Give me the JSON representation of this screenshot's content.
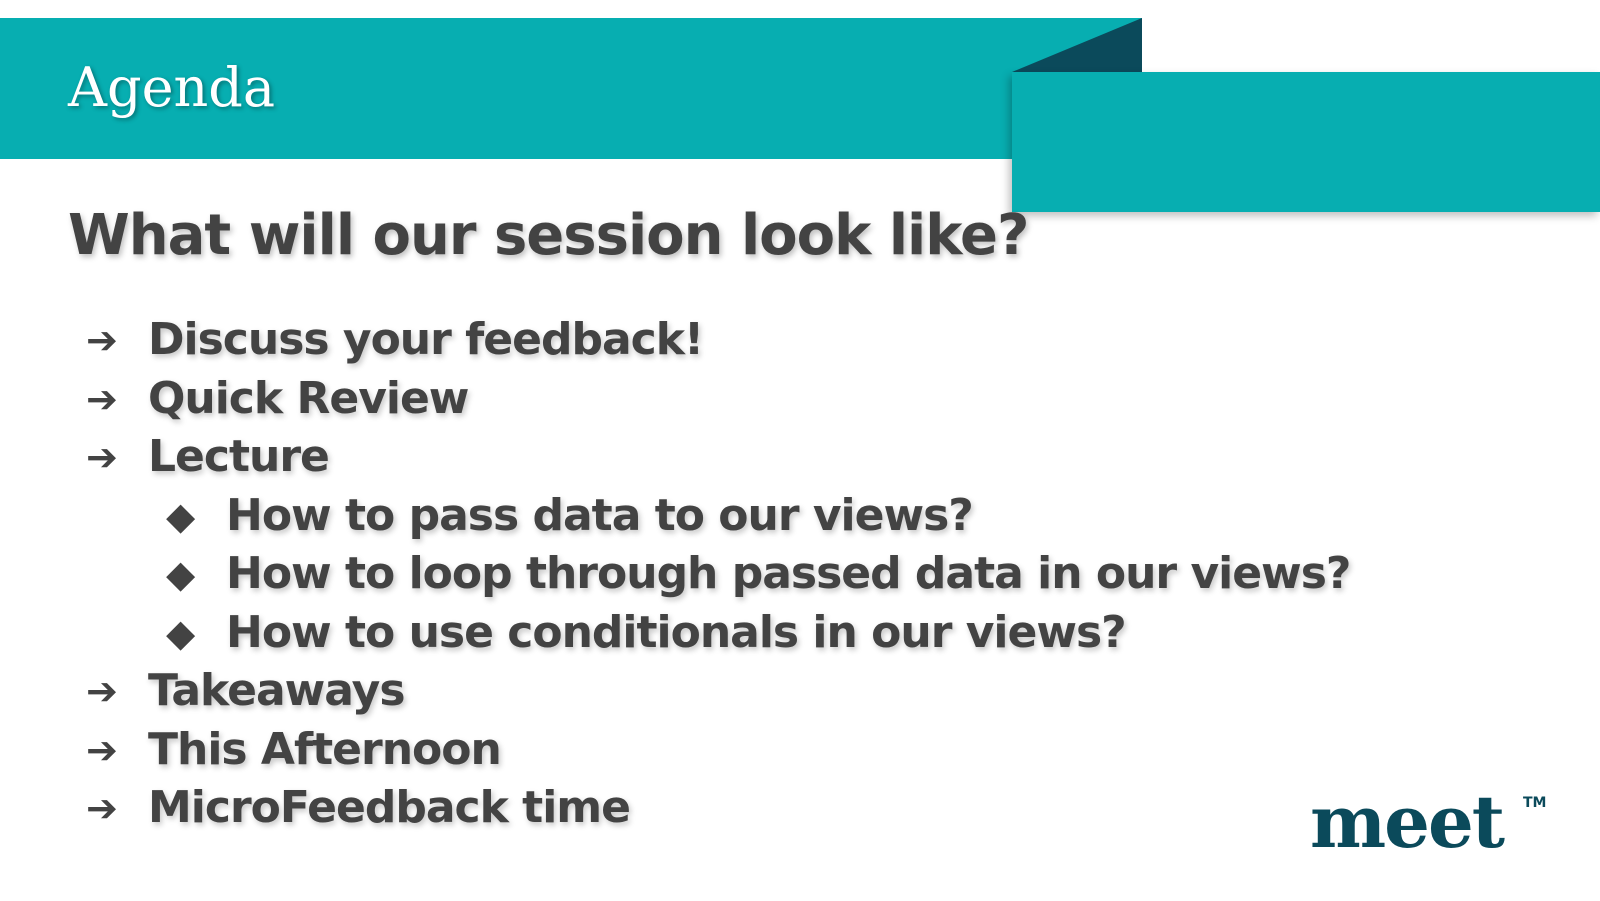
{
  "slide": {
    "section_title": "Agenda",
    "heading": "What will our session look like?",
    "items": [
      {
        "level": 1,
        "bullet": "➔",
        "text": "Discuss your feedback!"
      },
      {
        "level": 1,
        "bullet": "➔",
        "text": "Quick Review"
      },
      {
        "level": 1,
        "bullet": "➔",
        "text": "Lecture"
      },
      {
        "level": 2,
        "bullet": "◆",
        "text": "How to pass data to our views?"
      },
      {
        "level": 2,
        "bullet": "◆",
        "text": "How to loop through passed data in our views?"
      },
      {
        "level": 2,
        "bullet": "◆",
        "text": "How to use conditionals in our views?"
      },
      {
        "level": 1,
        "bullet": "➔",
        "text": "Takeaways"
      },
      {
        "level": 1,
        "bullet": "➔",
        "text": "This Afternoon"
      },
      {
        "level": 1,
        "bullet": "➔",
        "text": "MicroFeedback time"
      }
    ]
  },
  "logo": {
    "text": "meet",
    "trademark": "TM"
  },
  "colors": {
    "banner": "#07aeb1",
    "banner_fold": "#0b4a5b",
    "text": "#434343",
    "logo": "#0b4a5b"
  }
}
